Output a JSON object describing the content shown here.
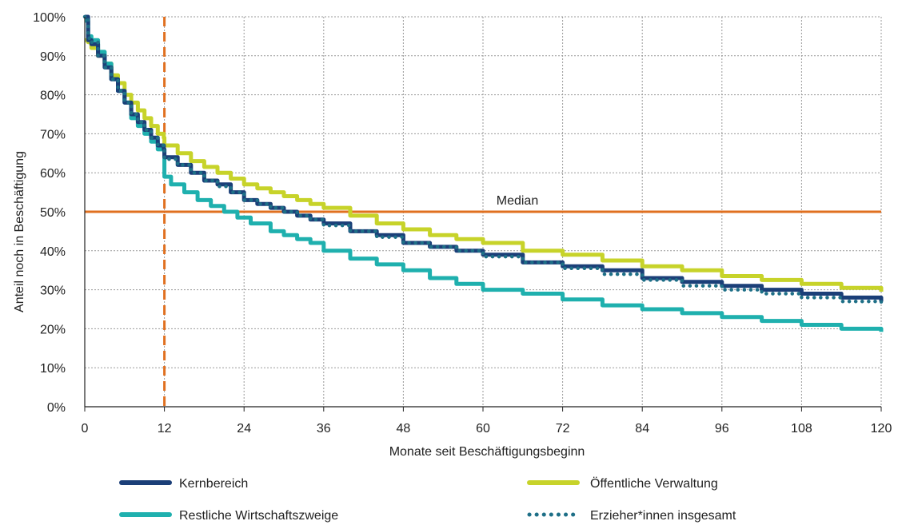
{
  "chart_data": {
    "type": "line",
    "title": "",
    "xlabel": "Monate seit Beschäftigungsbeginn",
    "ylabel": "Anteil noch in Beschäftigung",
    "xlim": [
      0,
      120
    ],
    "ylim": [
      0,
      100
    ],
    "x_ticks": [
      0,
      12,
      24,
      36,
      48,
      60,
      72,
      84,
      96,
      108,
      120
    ],
    "y_ticks": [
      0,
      10,
      20,
      30,
      40,
      50,
      60,
      70,
      80,
      90,
      100
    ],
    "x_tick_labels": [
      "0",
      "12",
      "24",
      "36",
      "48",
      "60",
      "72",
      "84",
      "96",
      "108",
      "120"
    ],
    "y_tick_labels": [
      "0%",
      "10%",
      "20%",
      "30%",
      "40%",
      "50%",
      "60%",
      "70%",
      "80%",
      "90%",
      "100%"
    ],
    "grid": true,
    "legend_position": "bottom",
    "reference_lines": [
      {
        "type": "horizontal",
        "y": 50,
        "label": "Median",
        "color": "#e07020"
      },
      {
        "type": "vertical",
        "x": 12,
        "style": "dashed",
        "color": "#e07020"
      }
    ],
    "series": [
      {
        "name": "Kernbereich",
        "color": "#1b3f78",
        "style": "solid",
        "points": [
          [
            0,
            100
          ],
          [
            0.5,
            94
          ],
          [
            1,
            93
          ],
          [
            2,
            90
          ],
          [
            3,
            87
          ],
          [
            4,
            84
          ],
          [
            5,
            81
          ],
          [
            6,
            78
          ],
          [
            7,
            75
          ],
          [
            8,
            73
          ],
          [
            9,
            71
          ],
          [
            10,
            69
          ],
          [
            11,
            67
          ],
          [
            11.9,
            66
          ],
          [
            12,
            64
          ],
          [
            14,
            62
          ],
          [
            16,
            60
          ],
          [
            18,
            58
          ],
          [
            20,
            57
          ],
          [
            22,
            55
          ],
          [
            24,
            53
          ],
          [
            26,
            52
          ],
          [
            28,
            51
          ],
          [
            30,
            50
          ],
          [
            32,
            49
          ],
          [
            34,
            48
          ],
          [
            36,
            47
          ],
          [
            40,
            45
          ],
          [
            44,
            44
          ],
          [
            48,
            42
          ],
          [
            52,
            41
          ],
          [
            56,
            40
          ],
          [
            60,
            39
          ],
          [
            66,
            37
          ],
          [
            72,
            36
          ],
          [
            78,
            35
          ],
          [
            84,
            33
          ],
          [
            90,
            32
          ],
          [
            96,
            31
          ],
          [
            102,
            30
          ],
          [
            108,
            29
          ],
          [
            114,
            28
          ],
          [
            120,
            27
          ]
        ]
      },
      {
        "name": "Öffentliche Verwaltung",
        "color": "#c7d32a",
        "style": "solid",
        "points": [
          [
            0,
            94
          ],
          [
            0.5,
            93.5
          ],
          [
            1,
            92
          ],
          [
            2,
            90
          ],
          [
            3,
            88
          ],
          [
            4,
            85
          ],
          [
            5,
            83
          ],
          [
            6,
            80
          ],
          [
            7,
            78
          ],
          [
            8,
            76
          ],
          [
            9,
            74
          ],
          [
            10,
            72
          ],
          [
            11,
            70
          ],
          [
            11.9,
            69
          ],
          [
            12,
            67
          ],
          [
            14,
            65
          ],
          [
            16,
            63
          ],
          [
            18,
            61.5
          ],
          [
            20,
            60
          ],
          [
            22,
            58.5
          ],
          [
            24,
            57
          ],
          [
            26,
            56
          ],
          [
            28,
            55
          ],
          [
            30,
            54
          ],
          [
            32,
            53
          ],
          [
            34,
            52
          ],
          [
            36,
            51
          ],
          [
            40,
            49
          ],
          [
            44,
            47
          ],
          [
            48,
            45.5
          ],
          [
            52,
            44
          ],
          [
            56,
            43
          ],
          [
            60,
            42
          ],
          [
            66,
            40
          ],
          [
            72,
            39
          ],
          [
            78,
            37.5
          ],
          [
            84,
            36
          ],
          [
            90,
            35
          ],
          [
            96,
            33.5
          ],
          [
            102,
            32.5
          ],
          [
            108,
            31.5
          ],
          [
            114,
            30.5
          ],
          [
            120,
            29.5
          ]
        ]
      },
      {
        "name": "Restliche Wirtschaftszweige",
        "color": "#1fb0ae",
        "style": "solid",
        "points": [
          [
            0,
            99
          ],
          [
            0.5,
            95
          ],
          [
            1,
            94
          ],
          [
            2,
            91
          ],
          [
            3,
            88
          ],
          [
            4,
            84
          ],
          [
            5,
            81
          ],
          [
            6,
            78
          ],
          [
            7,
            74
          ],
          [
            8,
            72
          ],
          [
            9,
            70
          ],
          [
            10,
            68
          ],
          [
            11,
            66
          ],
          [
            11.9,
            66
          ],
          [
            12,
            59
          ],
          [
            13,
            57
          ],
          [
            15,
            55
          ],
          [
            17,
            53
          ],
          [
            19,
            51.5
          ],
          [
            21,
            50
          ],
          [
            23,
            48.5
          ],
          [
            25,
            47
          ],
          [
            28,
            45
          ],
          [
            30,
            44
          ],
          [
            32,
            43
          ],
          [
            34,
            42
          ],
          [
            36,
            40
          ],
          [
            40,
            38
          ],
          [
            44,
            36.5
          ],
          [
            48,
            35
          ],
          [
            52,
            33
          ],
          [
            56,
            31.5
          ],
          [
            60,
            30
          ],
          [
            66,
            29
          ],
          [
            72,
            27.5
          ],
          [
            78,
            26
          ],
          [
            84,
            25
          ],
          [
            90,
            24
          ],
          [
            96,
            23
          ],
          [
            102,
            22
          ],
          [
            108,
            21
          ],
          [
            114,
            20
          ],
          [
            120,
            19.2
          ]
        ]
      },
      {
        "name": "Erzieher*innen insgesamt",
        "color": "#1e6f87",
        "style": "dotted",
        "points": [
          [
            0,
            100
          ],
          [
            0.5,
            94.5
          ],
          [
            1,
            93.5
          ],
          [
            2,
            90
          ],
          [
            3,
            87
          ],
          [
            4,
            84
          ],
          [
            5,
            81
          ],
          [
            6,
            78
          ],
          [
            7,
            75
          ],
          [
            8,
            73
          ],
          [
            9,
            71
          ],
          [
            10,
            69
          ],
          [
            11,
            67
          ],
          [
            11.9,
            66
          ],
          [
            12,
            63.5
          ],
          [
            14,
            62
          ],
          [
            16,
            60
          ],
          [
            18,
            58
          ],
          [
            20,
            56.5
          ],
          [
            22,
            55
          ],
          [
            24,
            53
          ],
          [
            26,
            52
          ],
          [
            28,
            51
          ],
          [
            30,
            50
          ],
          [
            32,
            49
          ],
          [
            34,
            48
          ],
          [
            36,
            46.5
          ],
          [
            40,
            45
          ],
          [
            44,
            43.5
          ],
          [
            48,
            42
          ],
          [
            52,
            41
          ],
          [
            56,
            40
          ],
          [
            60,
            38.5
          ],
          [
            66,
            37
          ],
          [
            72,
            35.5
          ],
          [
            78,
            34
          ],
          [
            84,
            32.5
          ],
          [
            90,
            31
          ],
          [
            96,
            30
          ],
          [
            102,
            29
          ],
          [
            108,
            28
          ],
          [
            114,
            27
          ],
          [
            120,
            26.5
          ]
        ]
      }
    ]
  },
  "median_label": "Median",
  "legend": {
    "items": [
      {
        "label": "Kernbereich"
      },
      {
        "label": "Öffentliche Verwaltung"
      },
      {
        "label": "Restliche Wirtschaftszweige"
      },
      {
        "label": "Erzieher*innen insgesamt"
      }
    ]
  }
}
